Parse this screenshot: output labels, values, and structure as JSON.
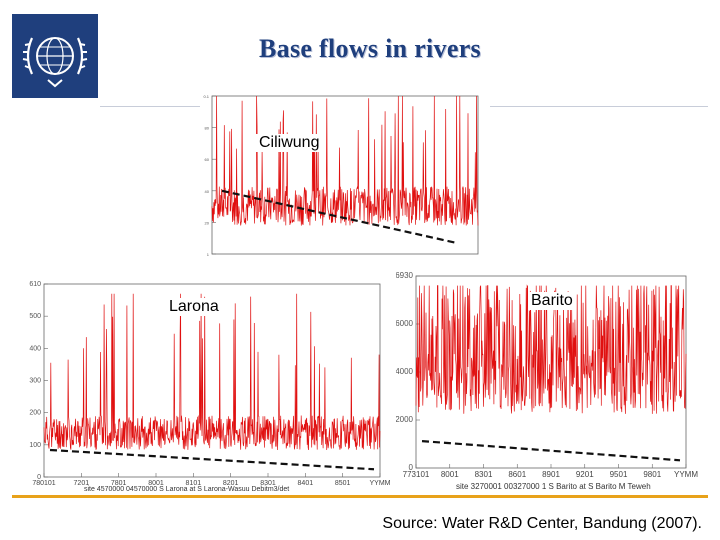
{
  "title": "Base flows in rivers",
  "source": "Source: Water R&D Center, Bandung (2007).",
  "colors": {
    "series": "#e01010",
    "baseflow": "#111111",
    "title": "#1f3f7d",
    "accent": "#e8a21a"
  },
  "logo": {
    "icon": "wmo-emblem-icon"
  },
  "chart_data": [
    {
      "type": "line",
      "label": "Ciliwung",
      "ytick_labels": [
        "0.1",
        "80",
        "60",
        "40",
        "20",
        "1"
      ],
      "xtick_labels": [],
      "caption": "",
      "series": [
        {
          "values": []
        }
      ],
      "baseline_trend": {
        "start": 24,
        "end": 6
      }
    },
    {
      "type": "line",
      "label": "Larona",
      "ytick_labels": [
        "610",
        "500",
        "400",
        "300",
        "200",
        "100",
        "0"
      ],
      "xtick_labels": [
        "780101",
        "7201",
        "7801",
        "8001",
        "8101",
        "8201",
        "8301",
        "8401",
        "8501",
        "YYMM"
      ],
      "caption": "site 4570000 04570000 S Larona at S Larona-Wasuu Debitm3/det",
      "series": [
        {
          "values": []
        }
      ],
      "baseline_trend": {
        "start": 110,
        "end": 25
      }
    },
    {
      "type": "line",
      "label": "Barito",
      "ytick_labels": [
        "6930",
        "6000",
        "4000",
        "2000",
        "0"
      ],
      "xtick_labels": [
        "773101",
        "8001",
        "8301",
        "8601",
        "8901",
        "9201",
        "9501",
        "9801",
        "YYMM"
      ],
      "caption": "site 3270001 00327000 1 S Barito at S Barito M Teweh",
      "series": [
        {
          "values": []
        }
      ],
      "baseline_trend": {
        "start": 700,
        "end": 200
      }
    }
  ]
}
